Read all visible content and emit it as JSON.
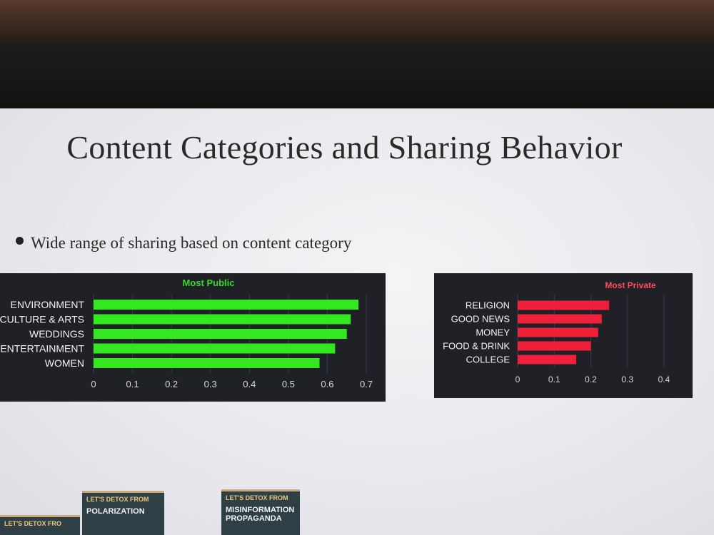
{
  "slide": {
    "title": "Content Categories and Sharing Behavior",
    "bullet": "Wide range of sharing based on content category"
  },
  "chart_data": [
    {
      "type": "bar",
      "orientation": "horizontal",
      "title": "Most Public",
      "title_color": "#3bd62b",
      "bar_color": "#33e81e",
      "categories": [
        "ENVIRONMENT",
        "CULTURE & ARTS",
        "WEDDINGS",
        "ENTERTAINMENT",
        "WOMEN"
      ],
      "values": [
        0.68,
        0.66,
        0.65,
        0.62,
        0.58
      ],
      "xlim": [
        0,
        0.7
      ],
      "xticks": [
        "0",
        "0.1",
        "0.2",
        "0.3",
        "0.4",
        "0.5",
        "0.6",
        "0.7"
      ],
      "grid": true
    },
    {
      "type": "bar",
      "orientation": "horizontal",
      "title": "Most Private",
      "title_color": "#ff4d5a",
      "bar_color": "#f0203a",
      "categories": [
        "RELIGION",
        "GOOD NEWS",
        "MONEY",
        "FOOD & DRINK",
        "COLLEGE"
      ],
      "values": [
        0.25,
        0.23,
        0.22,
        0.2,
        0.16
      ],
      "xlim": [
        0,
        0.4
      ],
      "xticks": [
        "0",
        "0.1",
        "0.2",
        "0.3",
        "0.4"
      ],
      "grid": true
    }
  ],
  "props": {
    "sign1_small": "LET'S DETOX FROM",
    "sign1_big": "POLARIZATION",
    "sign2_small": "LET'S DETOX FROM",
    "sign2_big": "MISINFORMATION PROPAGANDA",
    "sign3_small": "LET'S DETOX FRO"
  }
}
